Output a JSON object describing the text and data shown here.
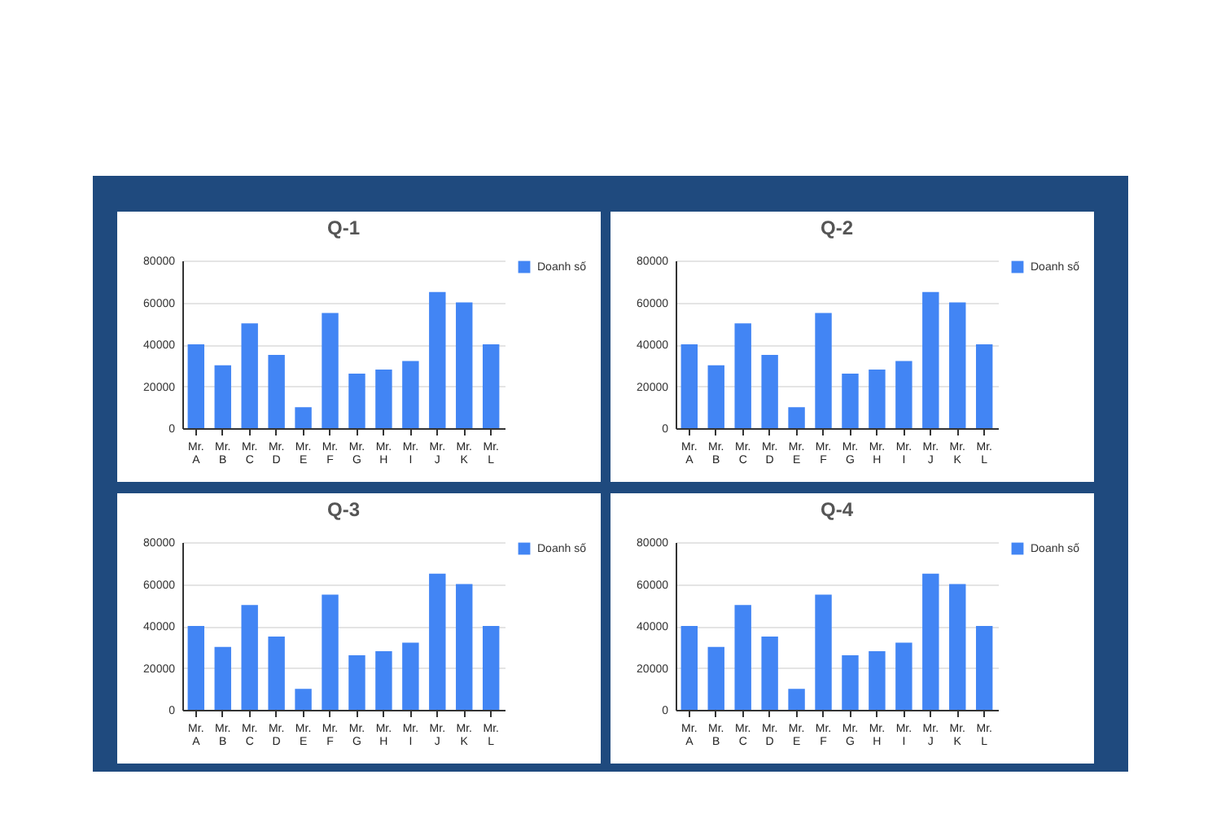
{
  "chart_data": [
    {
      "type": "bar",
      "title": "Q-1",
      "categories": [
        "Mr. A",
        "Mr. B",
        "Mr. C",
        "Mr. D",
        "Mr. E",
        "Mr. F",
        "Mr. G",
        "Mr. H",
        "Mr. I",
        "Mr. J",
        "Mr. K",
        "Mr. L"
      ],
      "series": [
        {
          "name": "Doanh số",
          "color": "#4285f4",
          "values": [
            40000,
            30000,
            50000,
            35000,
            10000,
            55000,
            26000,
            28000,
            32000,
            65000,
            60000,
            40000
          ]
        }
      ],
      "ylim": [
        0,
        80000
      ],
      "yticks": [
        0,
        20000,
        40000,
        60000,
        80000
      ],
      "grid": "y",
      "legend": "top right"
    },
    {
      "type": "bar",
      "title": "Q-2",
      "categories": [
        "Mr. A",
        "Mr. B",
        "Mr. C",
        "Mr. D",
        "Mr. E",
        "Mr. F",
        "Mr. G",
        "Mr. H",
        "Mr. I",
        "Mr. J",
        "Mr. K",
        "Mr. L"
      ],
      "series": [
        {
          "name": "Doanh số",
          "color": "#4285f4",
          "values": [
            40000,
            30000,
            50000,
            35000,
            10000,
            55000,
            26000,
            28000,
            32000,
            65000,
            60000,
            40000
          ]
        }
      ],
      "ylim": [
        0,
        80000
      ],
      "yticks": [
        0,
        20000,
        40000,
        60000,
        80000
      ],
      "grid": "y",
      "legend": "top right"
    },
    {
      "type": "bar",
      "title": "Q-3",
      "categories": [
        "Mr. A",
        "Mr. B",
        "Mr. C",
        "Mr. D",
        "Mr. E",
        "Mr. F",
        "Mr. G",
        "Mr. H",
        "Mr. I",
        "Mr. J",
        "Mr. K",
        "Mr. L"
      ],
      "series": [
        {
          "name": "Doanh số",
          "color": "#4285f4",
          "values": [
            40000,
            30000,
            50000,
            35000,
            10000,
            55000,
            26000,
            28000,
            32000,
            65000,
            60000,
            40000
          ]
        }
      ],
      "ylim": [
        0,
        80000
      ],
      "yticks": [
        0,
        20000,
        40000,
        60000,
        80000
      ],
      "grid": "y",
      "legend": "top right"
    },
    {
      "type": "bar",
      "title": "Q-4",
      "categories": [
        "Mr. A",
        "Mr. B",
        "Mr. C",
        "Mr. D",
        "Mr. E",
        "Mr. F",
        "Mr. G",
        "Mr. H",
        "Mr. I",
        "Mr. J",
        "Mr. K",
        "Mr. L"
      ],
      "series": [
        {
          "name": "Doanh số",
          "color": "#4285f4",
          "values": [
            40000,
            30000,
            50000,
            35000,
            10000,
            55000,
            26000,
            28000,
            32000,
            65000,
            60000,
            40000
          ]
        }
      ],
      "ylim": [
        0,
        80000
      ],
      "yticks": [
        0,
        20000,
        40000,
        60000,
        80000
      ],
      "grid": "y",
      "legend": "top right"
    }
  ]
}
